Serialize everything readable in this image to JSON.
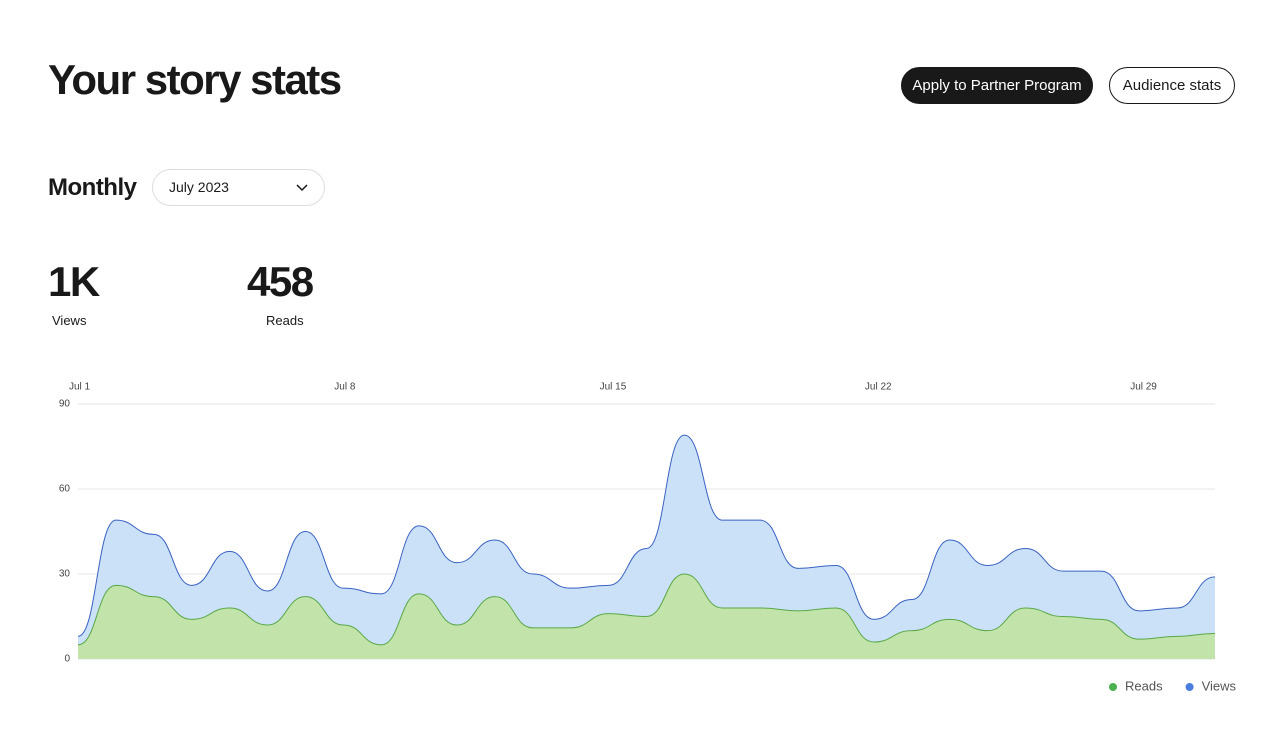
{
  "header": {
    "title": "Your story stats",
    "buttons": [
      "Apply to Partner Program",
      "Audience stats"
    ]
  },
  "period": {
    "label": "Monthly",
    "selected": "July 2023"
  },
  "summary": [
    {
      "value": "1K",
      "label": "Views"
    },
    {
      "value": "458",
      "label": "Reads"
    }
  ],
  "chart_data": {
    "type": "area",
    "categories": [
      "Jul 1",
      null,
      null,
      null,
      null,
      null,
      null,
      "Jul 8",
      null,
      null,
      null,
      null,
      null,
      null,
      "Jul 15",
      null,
      null,
      null,
      null,
      null,
      null,
      "Jul 22",
      null,
      null,
      null,
      null,
      null,
      null,
      "Jul 29",
      null,
      null
    ],
    "series": [
      {
        "name": "Reads",
        "color": "#5aa847",
        "fill": "#c2e4ab",
        "legend_color": "#4caf50",
        "values": [
          5,
          26,
          22,
          14,
          18,
          12,
          22,
          12,
          5,
          23,
          12,
          22,
          11,
          11,
          16,
          15,
          30,
          18,
          18,
          17,
          18,
          6,
          10,
          14,
          10,
          18,
          15,
          14,
          7,
          8,
          9
        ]
      },
      {
        "name": "Views",
        "color": "#3a62c2",
        "fill": "#cbe1f8",
        "legend_color": "#4a7de0",
        "values": [
          8,
          49,
          44,
          26,
          38,
          24,
          45,
          25,
          23,
          47,
          34,
          42,
          30,
          25,
          26,
          39,
          79,
          49,
          49,
          32,
          33,
          14,
          21,
          42,
          33,
          39,
          31,
          31,
          17,
          18,
          29
        ]
      }
    ],
    "ylim": [
      0,
      90
    ],
    "yticks": [
      0,
      30,
      60,
      90
    ],
    "grid": true,
    "legend": "bottom-right"
  }
}
